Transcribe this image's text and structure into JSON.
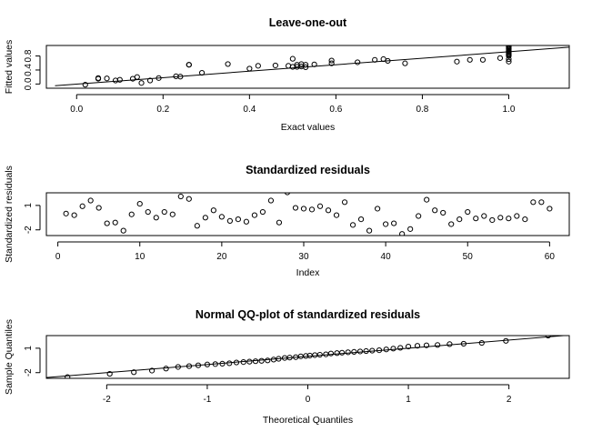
{
  "chart_data": [
    {
      "type": "scatter",
      "title": "Leave-one-out",
      "xlabel": "Exact values",
      "ylabel": "Fitted values",
      "xlim": [
        -0.07,
        1.14
      ],
      "ylim": [
        -0.12,
        1.1
      ],
      "x_ticks": [
        0.0,
        0.2,
        0.4,
        0.6,
        0.8,
        1.0
      ],
      "x_tick_labels": [
        "0.0",
        "0.2",
        "0.4",
        "0.6",
        "0.8",
        "1.0"
      ],
      "y_ticks": [
        0.0,
        0.4,
        0.8
      ],
      "y_tick_labels": [
        "0.0",
        "0.4",
        "0.8"
      ],
      "reference_line": {
        "x": [
          -0.05,
          1.14
        ],
        "y": [
          -0.05,
          1.05
        ]
      },
      "grid": false,
      "points": {
        "x": [
          0.02,
          0.05,
          0.05,
          0.07,
          0.09,
          0.1,
          0.13,
          0.14,
          0.15,
          0.17,
          0.19,
          0.23,
          0.24,
          0.26,
          0.26,
          0.29,
          0.35,
          0.4,
          0.42,
          0.46,
          0.49,
          0.5,
          0.5,
          0.51,
          0.51,
          0.52,
          0.52,
          0.53,
          0.53,
          0.55,
          0.59,
          0.59,
          0.65,
          0.69,
          0.71,
          0.72,
          0.76,
          0.88,
          0.91,
          0.94,
          0.98,
          1.0,
          1.0,
          1.0,
          1.0,
          1.0,
          1.0,
          1.0,
          1.0,
          1.0,
          1.0,
          1.0,
          1.0,
          1.0
        ],
        "y": [
          -0.02,
          0.15,
          0.17,
          0.16,
          0.1,
          0.12,
          0.15,
          0.2,
          0.03,
          0.1,
          0.17,
          0.22,
          0.21,
          0.55,
          0.55,
          0.32,
          0.57,
          0.44,
          0.52,
          0.53,
          0.52,
          0.49,
          0.72,
          0.55,
          0.49,
          0.57,
          0.5,
          0.48,
          0.55,
          0.56,
          0.67,
          0.59,
          0.62,
          0.69,
          0.71,
          0.66,
          0.59,
          0.64,
          0.69,
          0.69,
          0.74,
          0.64,
          0.71,
          0.8,
          0.83,
          0.86,
          0.89,
          0.92,
          0.95,
          1.0,
          1.02,
          1.05,
          1.07,
          1.1
        ]
      }
    },
    {
      "type": "scatter",
      "title": "Standardized residuals",
      "xlabel": "Index",
      "ylabel": "Standardized residuals",
      "xlim": [
        -1.4,
        62.4
      ],
      "ylim": [
        -2.7,
        2.55
      ],
      "x_ticks": [
        0,
        10,
        20,
        30,
        40,
        50,
        60
      ],
      "x_tick_labels": [
        "0",
        "10",
        "20",
        "30",
        "40",
        "50",
        "60"
      ],
      "y_ticks": [
        -2,
        1
      ],
      "y_tick_labels": [
        "-2",
        "1"
      ],
      "grid": false,
      "points": {
        "x": [
          1,
          2,
          3,
          4,
          5,
          6,
          7,
          8,
          9,
          10,
          11,
          12,
          13,
          14,
          15,
          16,
          17,
          18,
          19,
          20,
          21,
          22,
          23,
          24,
          25,
          26,
          27,
          28,
          29,
          30,
          31,
          32,
          33,
          34,
          35,
          36,
          37,
          38,
          39,
          40,
          41,
          42,
          43,
          44,
          45,
          46,
          47,
          48,
          49,
          50,
          51,
          52,
          53,
          54,
          55,
          56,
          57,
          58,
          59,
          60
        ],
        "y": [
          0.0,
          -0.2,
          0.9,
          1.6,
          0.7,
          -1.2,
          -1.1,
          -2.1,
          -0.1,
          1.2,
          0.2,
          -0.5,
          0.2,
          -0.1,
          2.1,
          1.8,
          -1.5,
          -0.5,
          0.4,
          -0.4,
          -0.9,
          -0.7,
          -1.0,
          -0.2,
          0.2,
          1.6,
          -1.1,
          2.6,
          0.7,
          0.6,
          0.5,
          0.9,
          0.4,
          -0.2,
          1.4,
          -1.4,
          -0.7,
          -2.1,
          0.6,
          -1.3,
          -1.2,
          -2.5,
          -1.9,
          -0.3,
          1.7,
          0.4,
          0.1,
          -1.3,
          -0.7,
          0.2,
          -0.6,
          -0.3,
          -0.8,
          -0.5,
          -0.6,
          -0.3,
          -0.7,
          1.4,
          1.4,
          0.6
        ]
      }
    },
    {
      "type": "scatter",
      "title": "Normal QQ-plot of standardized residuals",
      "xlabel": "Theoretical Quantiles",
      "ylabel": "Sample Quantiles",
      "xlim": [
        -2.6,
        2.6
      ],
      "ylim": [
        -2.7,
        2.55
      ],
      "x_ticks": [
        -2,
        -1,
        0,
        1,
        2
      ],
      "x_tick_labels": [
        "-2",
        "-1",
        "0",
        "1",
        "2"
      ],
      "y_ticks": [
        -2,
        1
      ],
      "y_tick_labels": [
        "-2",
        "1"
      ],
      "reference_line": {
        "x": [
          -2.6,
          2.6
        ],
        "y": [
          -2.6,
          2.6
        ]
      },
      "grid": false,
      "points": {
        "x": [
          -2.39,
          -1.97,
          -1.73,
          -1.55,
          -1.41,
          -1.29,
          -1.18,
          -1.09,
          -1.0,
          -0.92,
          -0.85,
          -0.78,
          -0.71,
          -0.64,
          -0.58,
          -0.52,
          -0.46,
          -0.4,
          -0.34,
          -0.29,
          -0.23,
          -0.18,
          -0.12,
          -0.07,
          -0.02,
          0.02,
          0.07,
          0.12,
          0.18,
          0.23,
          0.29,
          0.34,
          0.4,
          0.46,
          0.52,
          0.58,
          0.64,
          0.71,
          0.78,
          0.85,
          0.92,
          1.0,
          1.09,
          1.18,
          1.29,
          1.41,
          1.55,
          1.73,
          1.97,
          2.39
        ],
        "y": [
          -2.55,
          -2.15,
          -1.95,
          -1.75,
          -1.5,
          -1.3,
          -1.2,
          -1.1,
          -1.0,
          -0.95,
          -0.9,
          -0.85,
          -0.75,
          -0.7,
          -0.65,
          -0.6,
          -0.55,
          -0.5,
          -0.4,
          -0.3,
          -0.2,
          -0.15,
          -0.1,
          0.0,
          0.05,
          0.1,
          0.15,
          0.2,
          0.25,
          0.35,
          0.4,
          0.45,
          0.5,
          0.55,
          0.6,
          0.65,
          0.7,
          0.75,
          0.85,
          0.95,
          1.05,
          1.2,
          1.3,
          1.35,
          1.4,
          1.5,
          1.55,
          1.65,
          1.9,
          2.55
        ]
      }
    }
  ]
}
